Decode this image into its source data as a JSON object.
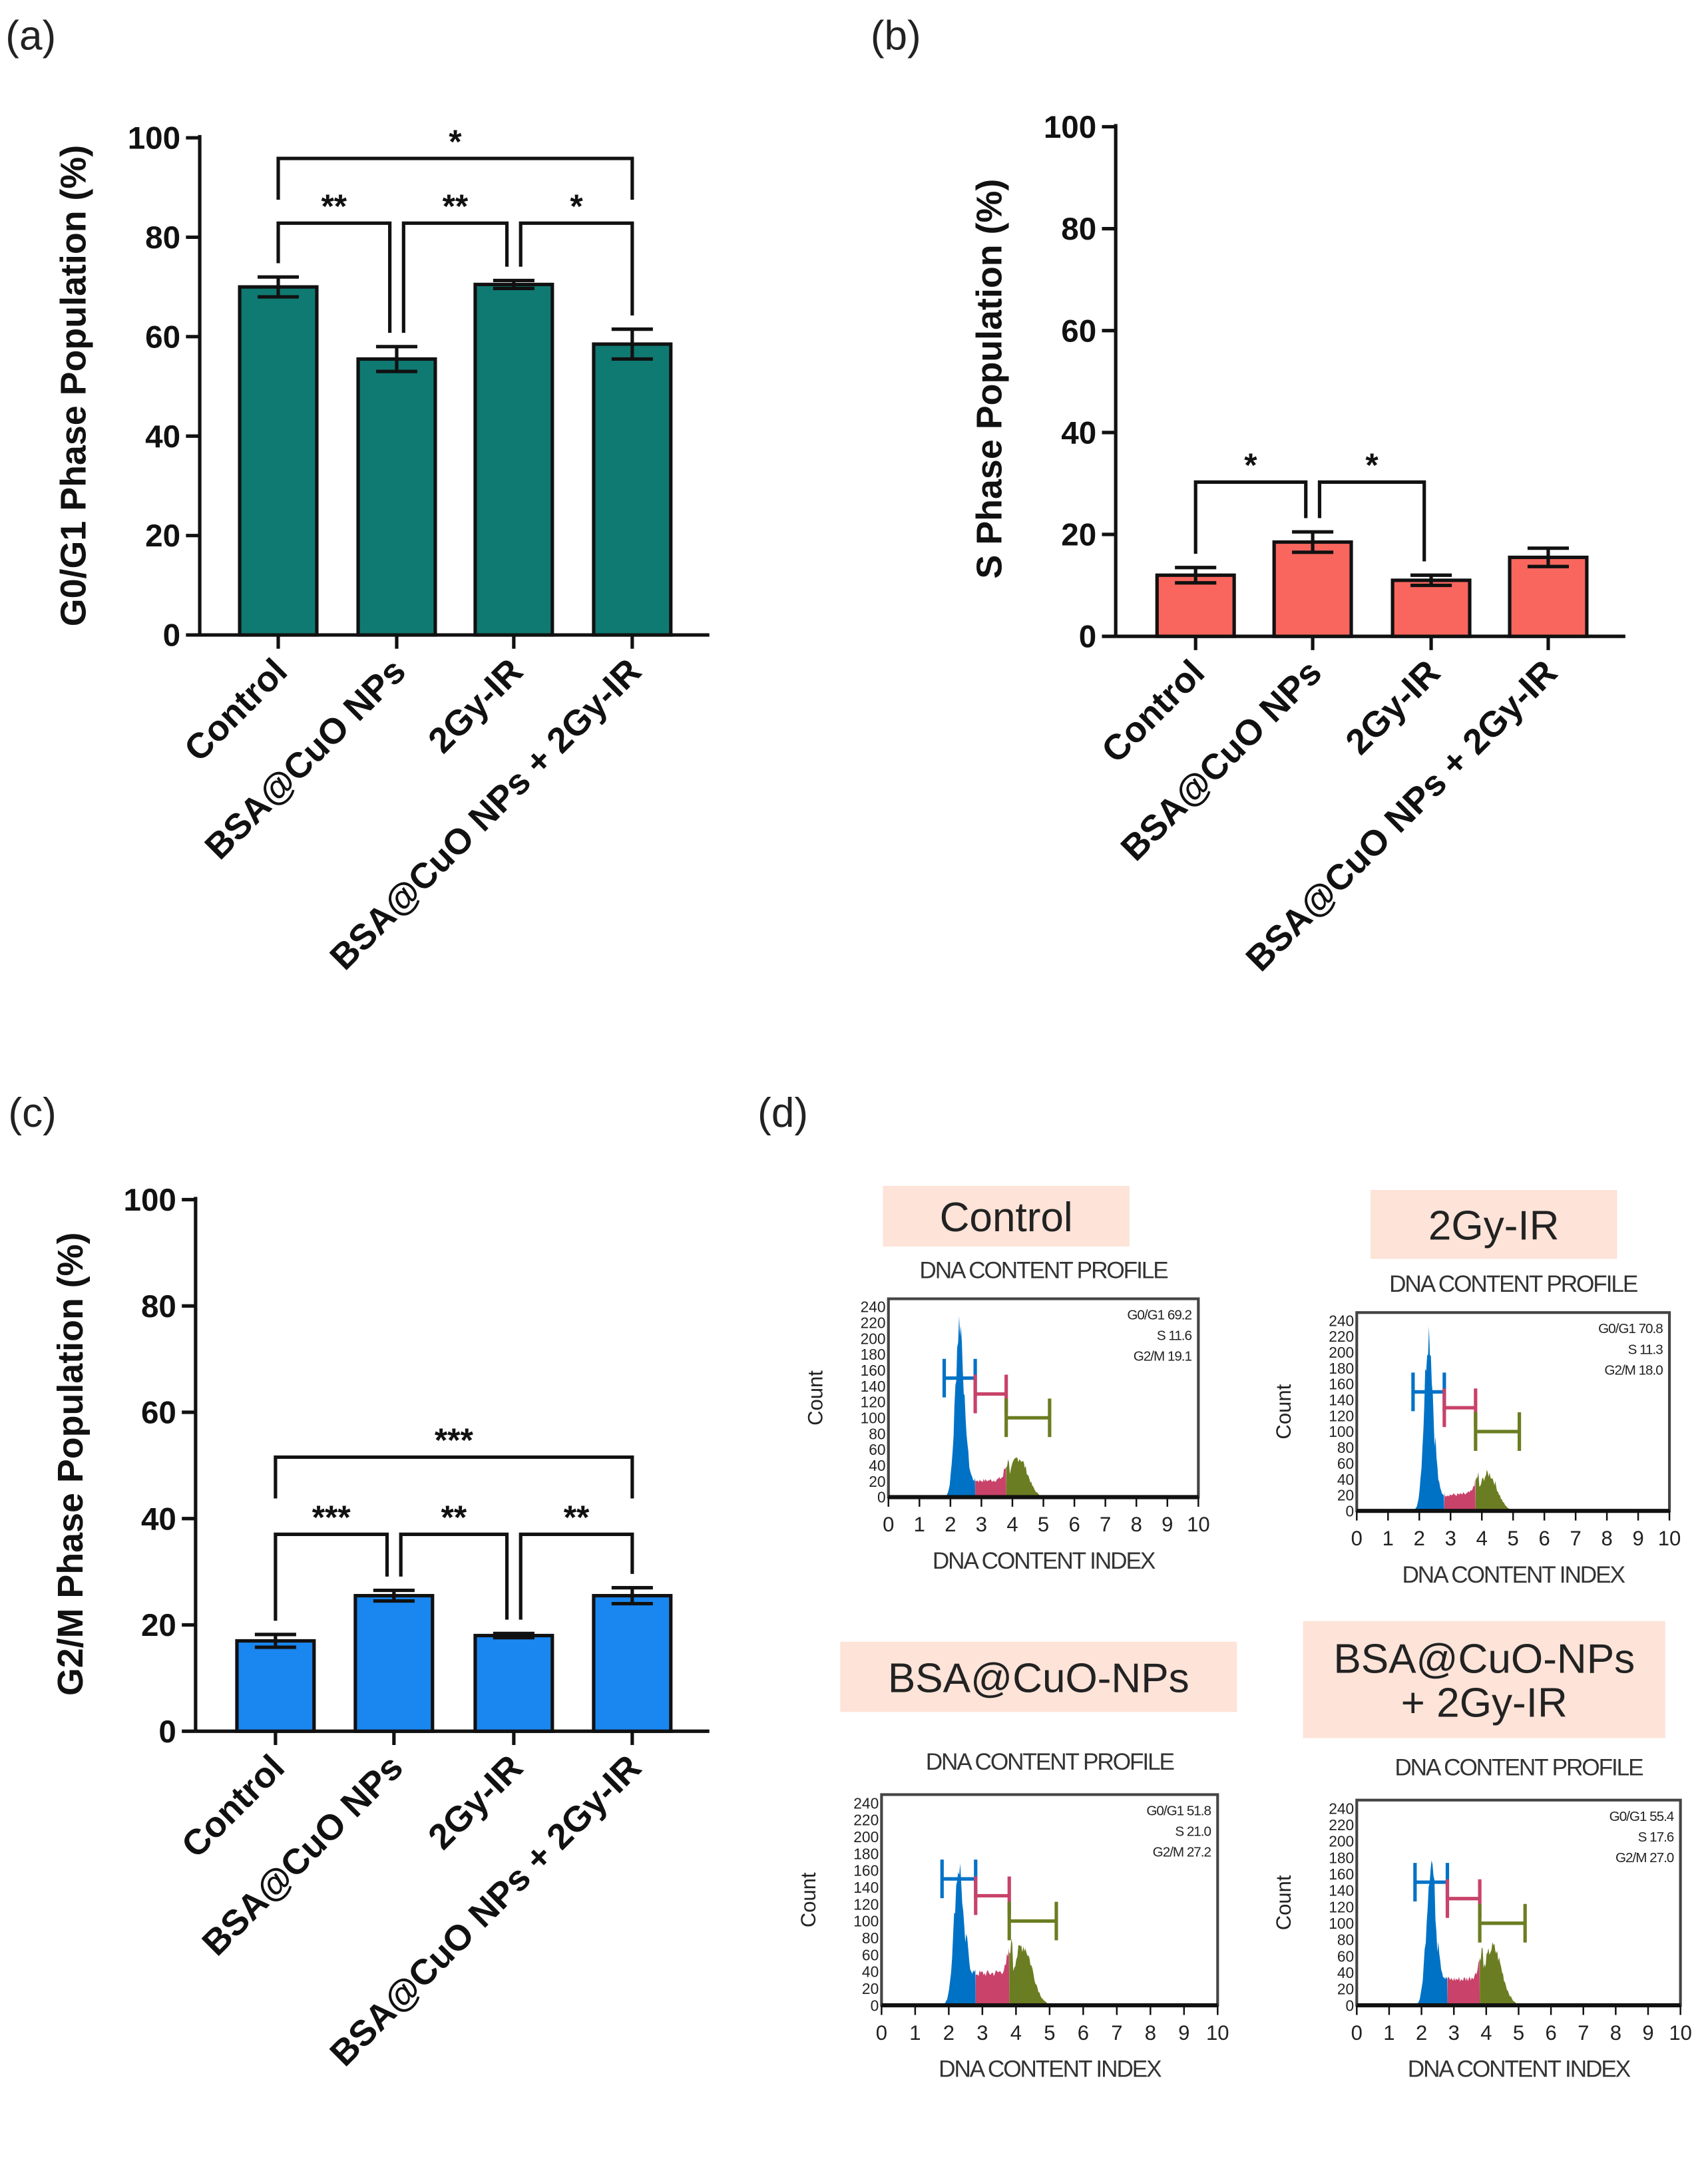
{
  "panel_letters": [
    "(a)",
    "(b)",
    "(c)",
    "(d)"
  ],
  "chart_data": [
    {
      "type": "bar",
      "panel": "(a)",
      "ylabel": "G0/G1 Phase Population (%)",
      "xlabel": "",
      "ylim": [
        0,
        100
      ],
      "yticks": [
        0,
        20,
        40,
        60,
        80,
        100
      ],
      "categories": [
        "Control",
        "BSA@CuO NPs",
        "2Gy-IR",
        "BSA@CuO NPs + 2Gy-IR"
      ],
      "values": [
        70,
        55.5,
        70.5,
        58.5
      ],
      "errors": [
        2,
        2.5,
        0.8,
        3
      ],
      "color": "#0f7a72",
      "comparisons": [
        {
          "from": 0,
          "to": 3,
          "label": "*"
        },
        {
          "from": 0,
          "to": 1,
          "label": "**"
        },
        {
          "from": 1,
          "to": 2,
          "label": "**"
        },
        {
          "from": 2,
          "to": 3,
          "label": "*"
        }
      ]
    },
    {
      "type": "bar",
      "panel": "(b)",
      "ylabel": "S Phase Population (%)",
      "xlabel": "",
      "ylim": [
        0,
        100
      ],
      "yticks": [
        0,
        20,
        40,
        60,
        80,
        100
      ],
      "categories": [
        "Control",
        "BSA@CuO NPs",
        "2Gy-IR",
        "BSA@CuO NPs + 2Gy-IR"
      ],
      "values": [
        12,
        18.5,
        11,
        15.5
      ],
      "errors": [
        1.5,
        2,
        1,
        1.8
      ],
      "color": "#f8665e",
      "comparisons": [
        {
          "from": 0,
          "to": 1,
          "label": "*"
        },
        {
          "from": 1,
          "to": 2,
          "label": "*"
        }
      ]
    },
    {
      "type": "bar",
      "panel": "(c)",
      "ylabel": "G2/M Phase Population (%)",
      "xlabel": "",
      "ylim": [
        0,
        100
      ],
      "yticks": [
        0,
        20,
        40,
        60,
        80,
        100
      ],
      "categories": [
        "Control",
        "BSA@CuO NPs",
        "2Gy-IR",
        "BSA@CuO NPs + 2Gy-IR"
      ],
      "values": [
        17,
        25.5,
        18,
        25.5
      ],
      "errors": [
        1.2,
        1,
        0.4,
        1.5
      ],
      "color": "#1a86f0",
      "comparisons": [
        {
          "from": 0,
          "to": 3,
          "label": "***"
        },
        {
          "from": 0,
          "to": 1,
          "label": "***"
        },
        {
          "from": 1,
          "to": 2,
          "label": "**"
        },
        {
          "from": 2,
          "to": 3,
          "label": "**"
        }
      ]
    }
  ],
  "histograms": {
    "panel": "(d)",
    "title": "DNA CONTENT PROFILE",
    "xlabel": "DNA CONTENT INDEX",
    "ylabel": "Count",
    "xticks": [
      "0",
      "1",
      "2",
      "3",
      "4",
      "5",
      "6",
      "7",
      "8",
      "9",
      "10"
    ],
    "yticks": [
      "0",
      "20",
      "40",
      "60",
      "80",
      "100",
      "120",
      "140",
      "160",
      "180",
      "200",
      "220",
      "240"
    ],
    "label_bg": "#fde3d8",
    "phase_colors": {
      "g0g1": "#0072c6",
      "s": "#c8426a",
      "g2m": "#6b7d22"
    },
    "samples": [
      {
        "label": [
          "Control"
        ],
        "stats": [
          "G0/G1 69.2",
          "S 11.6",
          "G2/M 19.1"
        ],
        "g0g1": 69.2,
        "s": 11.6,
        "g2m": 19.1
      },
      {
        "label": [
          "2Gy-IR"
        ],
        "stats": [
          "G0/G1 70.8",
          "S 11.3",
          "G2/M 18.0"
        ],
        "g0g1": 70.8,
        "s": 11.3,
        "g2m": 18.0
      },
      {
        "label": [
          "BSA@CuO-NPs"
        ],
        "stats": [
          "G0/G1 51.8",
          "S 21.0",
          "G2/M 27.2"
        ],
        "g0g1": 51.8,
        "s": 21.0,
        "g2m": 27.2
      },
      {
        "label": [
          "BSA@CuO-NPs",
          "+ 2Gy-IR"
        ],
        "stats": [
          "G0/G1 55.4",
          "S 17.6",
          "G2/M 27.0"
        ],
        "g0g1": 55.4,
        "s": 17.6,
        "g2m": 27.0
      }
    ]
  }
}
